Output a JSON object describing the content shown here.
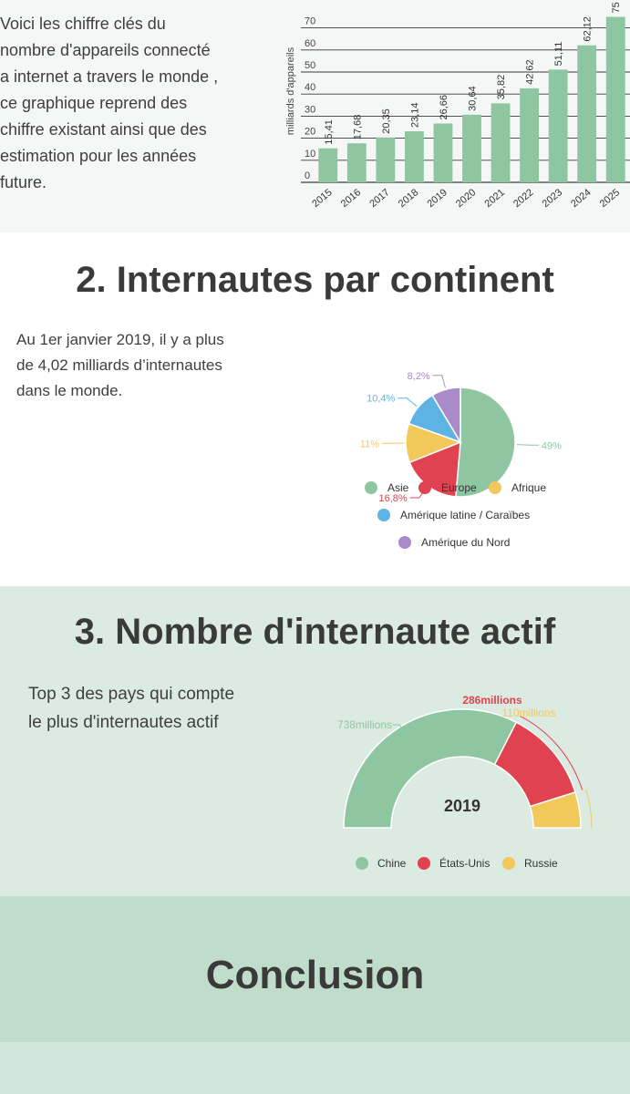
{
  "sections": {
    "devices": {
      "intro": [
        "Voici les chiffre clés du",
        "nombre d'appareils connecté",
        "a internet a travers le monde ,",
        "ce graphique reprend des",
        "chiffre existant ainsi que des",
        "estimation pour les années",
        "future."
      ]
    },
    "continent": {
      "heading": "2. Internautes par continent",
      "intro": [
        "Au 1er janvier 2019, il y a plus",
        "de 4,02 milliards d’internautes",
        "dans le monde."
      ]
    },
    "active": {
      "heading": "3. Nombre d'internaute actif",
      "intro": [
        "Top 3 des pays qui compte",
        "le plus d'internautes actif"
      ]
    },
    "conclusion": {
      "heading": "Conclusion"
    }
  },
  "chart_data": [
    {
      "type": "bar",
      "categories": [
        "2015",
        "2016",
        "2017",
        "2018",
        "2019",
        "2020",
        "2021",
        "2022",
        "2023",
        "2024",
        "2025"
      ],
      "values": [
        15.41,
        17.68,
        20.35,
        23.14,
        26.66,
        30.64,
        35.82,
        42.62,
        51.11,
        62.12,
        75
      ],
      "value_labels": [
        "15,41",
        "17,68",
        "20,35",
        "23,14",
        "26,66",
        "30,64",
        "35,82",
        "42,62",
        "51,11",
        "62,12",
        "75"
      ],
      "ylabel": "milliards d'appareils",
      "yticks": [
        0,
        10,
        20,
        30,
        40,
        50,
        60,
        70
      ],
      "ylim": [
        0,
        80
      ],
      "grid": true,
      "color": "#8ec6a2"
    },
    {
      "type": "pie",
      "slices": [
        {
          "name": "Asie",
          "value": 49,
          "label": "49%",
          "color": "#8ec6a2"
        },
        {
          "name": "Europe",
          "value": 16.8,
          "label": "16,8%",
          "color": "#e0434f"
        },
        {
          "name": "Afrique",
          "value": 11,
          "label": "11%",
          "color": "#f2c85b"
        },
        {
          "name": "Amérique latine / Caraïbes",
          "value": 10.4,
          "label": "10,4%",
          "color": "#5db3e4"
        },
        {
          "name": "Amérique du Nord",
          "value": 8.2,
          "label": "8,2%",
          "color": "#a88bc8"
        }
      ],
      "legend_position": "bottom"
    },
    {
      "type": "pie",
      "variant": "half-donut",
      "center_label": "2019",
      "slices": [
        {
          "name": "Chine",
          "value": 738,
          "label": "738millions",
          "color": "#8ec6a2"
        },
        {
          "name": "États-Unis",
          "value": 286,
          "label": "286millions",
          "color": "#e0434f"
        },
        {
          "name": "Russie",
          "value": 110,
          "label": "110millions",
          "color": "#f2c85b"
        }
      ],
      "legend_position": "bottom"
    }
  ]
}
